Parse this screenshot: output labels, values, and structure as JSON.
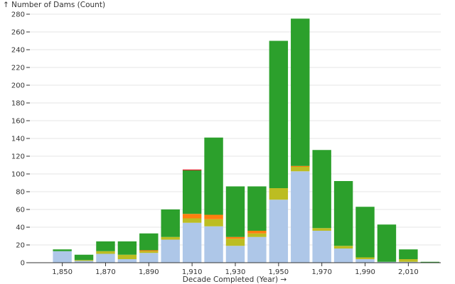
{
  "chart_data": {
    "type": "bar",
    "stacked": true,
    "xlabel": "Decade Completed (Year) →",
    "ylabel": "↑ Number of Dams (Count)",
    "x_tick_labels": [
      "1,850",
      "1,870",
      "1,890",
      "1,910",
      "1,930",
      "1,950",
      "1,970",
      "1,990",
      "2,010"
    ],
    "x_ticks": [
      1850,
      1870,
      1890,
      1910,
      1930,
      1950,
      1970,
      1990,
      2010
    ],
    "y_ticks": [
      0,
      20,
      40,
      60,
      80,
      100,
      120,
      140,
      160,
      180,
      200,
      220,
      240,
      260,
      280
    ],
    "xlim": [
      1840,
      2030
    ],
    "ylim": [
      0,
      280
    ],
    "grid": true,
    "categories": [
      1850,
      1860,
      1870,
      1880,
      1890,
      1900,
      1910,
      1920,
      1930,
      1940,
      1950,
      1960,
      1970,
      1980,
      1990,
      2000,
      2010,
      2020
    ],
    "series": [
      {
        "color": "#aec7e8",
        "values": [
          13,
          2,
          10,
          4,
          11,
          26,
          45,
          41,
          19,
          29,
          71,
          103,
          36,
          16,
          4,
          1,
          1,
          0
        ]
      },
      {
        "color": "#bcbd22",
        "values": [
          0,
          1,
          3,
          5,
          2,
          3,
          5,
          8,
          8,
          4,
          13,
          5,
          3,
          3,
          2,
          0,
          3,
          0
        ]
      },
      {
        "color": "#ff7f0e",
        "values": [
          0,
          0,
          0,
          0,
          1,
          0,
          5,
          5,
          2,
          3,
          0,
          1,
          0,
          0,
          0,
          0,
          0,
          0
        ]
      },
      {
        "color": "#2ca02c",
        "values": [
          2,
          6,
          11,
          15,
          19,
          31,
          49,
          87,
          57,
          50,
          166,
          166,
          88,
          73,
          57,
          42,
          11,
          1
        ]
      },
      {
        "color": "#d62728",
        "values": [
          0,
          0,
          0,
          0,
          0,
          0,
          1,
          0,
          0,
          0,
          0,
          0,
          0,
          0,
          0,
          0,
          0,
          0
        ]
      }
    ]
  }
}
